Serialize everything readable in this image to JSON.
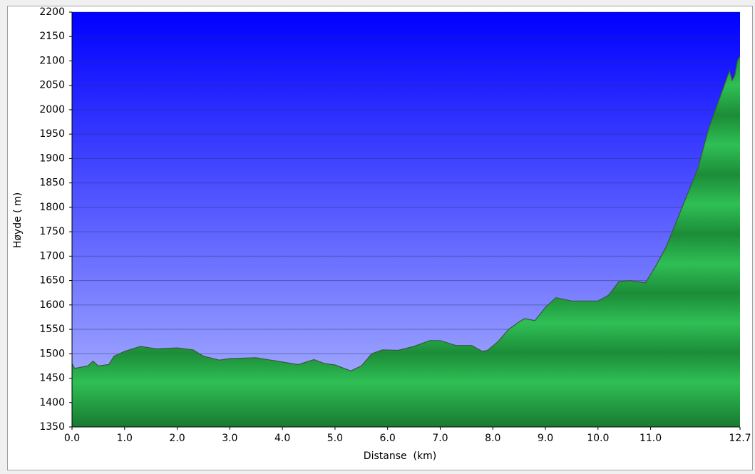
{
  "chart_data": {
    "type": "area",
    "xlabel": "Distanse  (km)",
    "ylabel": "Høyde ( m)",
    "x": [
      0,
      0.05,
      0.3,
      0.4,
      0.5,
      0.7,
      0.8,
      1.0,
      1.3,
      1.6,
      2.0,
      2.3,
      2.5,
      2.8,
      3.0,
      3.5,
      4.0,
      4.3,
      4.6,
      4.8,
      5.0,
      5.3,
      5.5,
      5.7,
      5.9,
      6.2,
      6.5,
      6.8,
      7.0,
      7.3,
      7.6,
      7.8,
      7.9,
      8.1,
      8.3,
      8.5,
      8.6,
      8.8,
      9.0,
      9.2,
      9.5,
      10.0,
      10.2,
      10.4,
      10.6,
      10.9,
      11.1,
      11.3,
      11.6,
      11.9,
      12.1,
      12.3,
      12.4,
      12.5,
      12.55,
      12.6,
      12.65,
      12.7
    ],
    "values": [
      1480,
      1470,
      1475,
      1485,
      1475,
      1478,
      1495,
      1505,
      1515,
      1510,
      1512,
      1508,
      1495,
      1487,
      1490,
      1492,
      1483,
      1478,
      1488,
      1480,
      1477,
      1465,
      1475,
      1500,
      1508,
      1507,
      1515,
      1527,
      1527,
      1517,
      1517,
      1505,
      1507,
      1525,
      1550,
      1565,
      1572,
      1568,
      1595,
      1615,
      1608,
      1608,
      1620,
      1648,
      1650,
      1645,
      1680,
      1720,
      1800,
      1880,
      1960,
      2020,
      2050,
      2080,
      2060,
      2070,
      2100,
      2110
    ],
    "color": "#22a845",
    "line_color": "#3a5a3a",
    "xlim": [
      0,
      12.7
    ],
    "xticks": [
      {
        "value": 0,
        "label": "0.0"
      },
      {
        "value": 1,
        "label": "1.0"
      },
      {
        "value": 2,
        "label": "2.0"
      },
      {
        "value": 3,
        "label": "3.0"
      },
      {
        "value": 4,
        "label": "4.0"
      },
      {
        "value": 5,
        "label": "5.0"
      },
      {
        "value": 6,
        "label": "6.0"
      },
      {
        "value": 7,
        "label": "7.0"
      },
      {
        "value": 8,
        "label": "8.0"
      },
      {
        "value": 9,
        "label": "9.0"
      },
      {
        "value": 10,
        "label": "10.0"
      },
      {
        "value": 11,
        "label": "11.0"
      },
      12.7
    ],
    "ylim": [
      1350,
      2200
    ],
    "yticks": [
      1350,
      1400,
      1450,
      1500,
      1550,
      1600,
      1650,
      1700,
      1750,
      1800,
      1850,
      1900,
      1950,
      2000,
      2050,
      2100,
      2150,
      2200
    ],
    "grid": true
  }
}
